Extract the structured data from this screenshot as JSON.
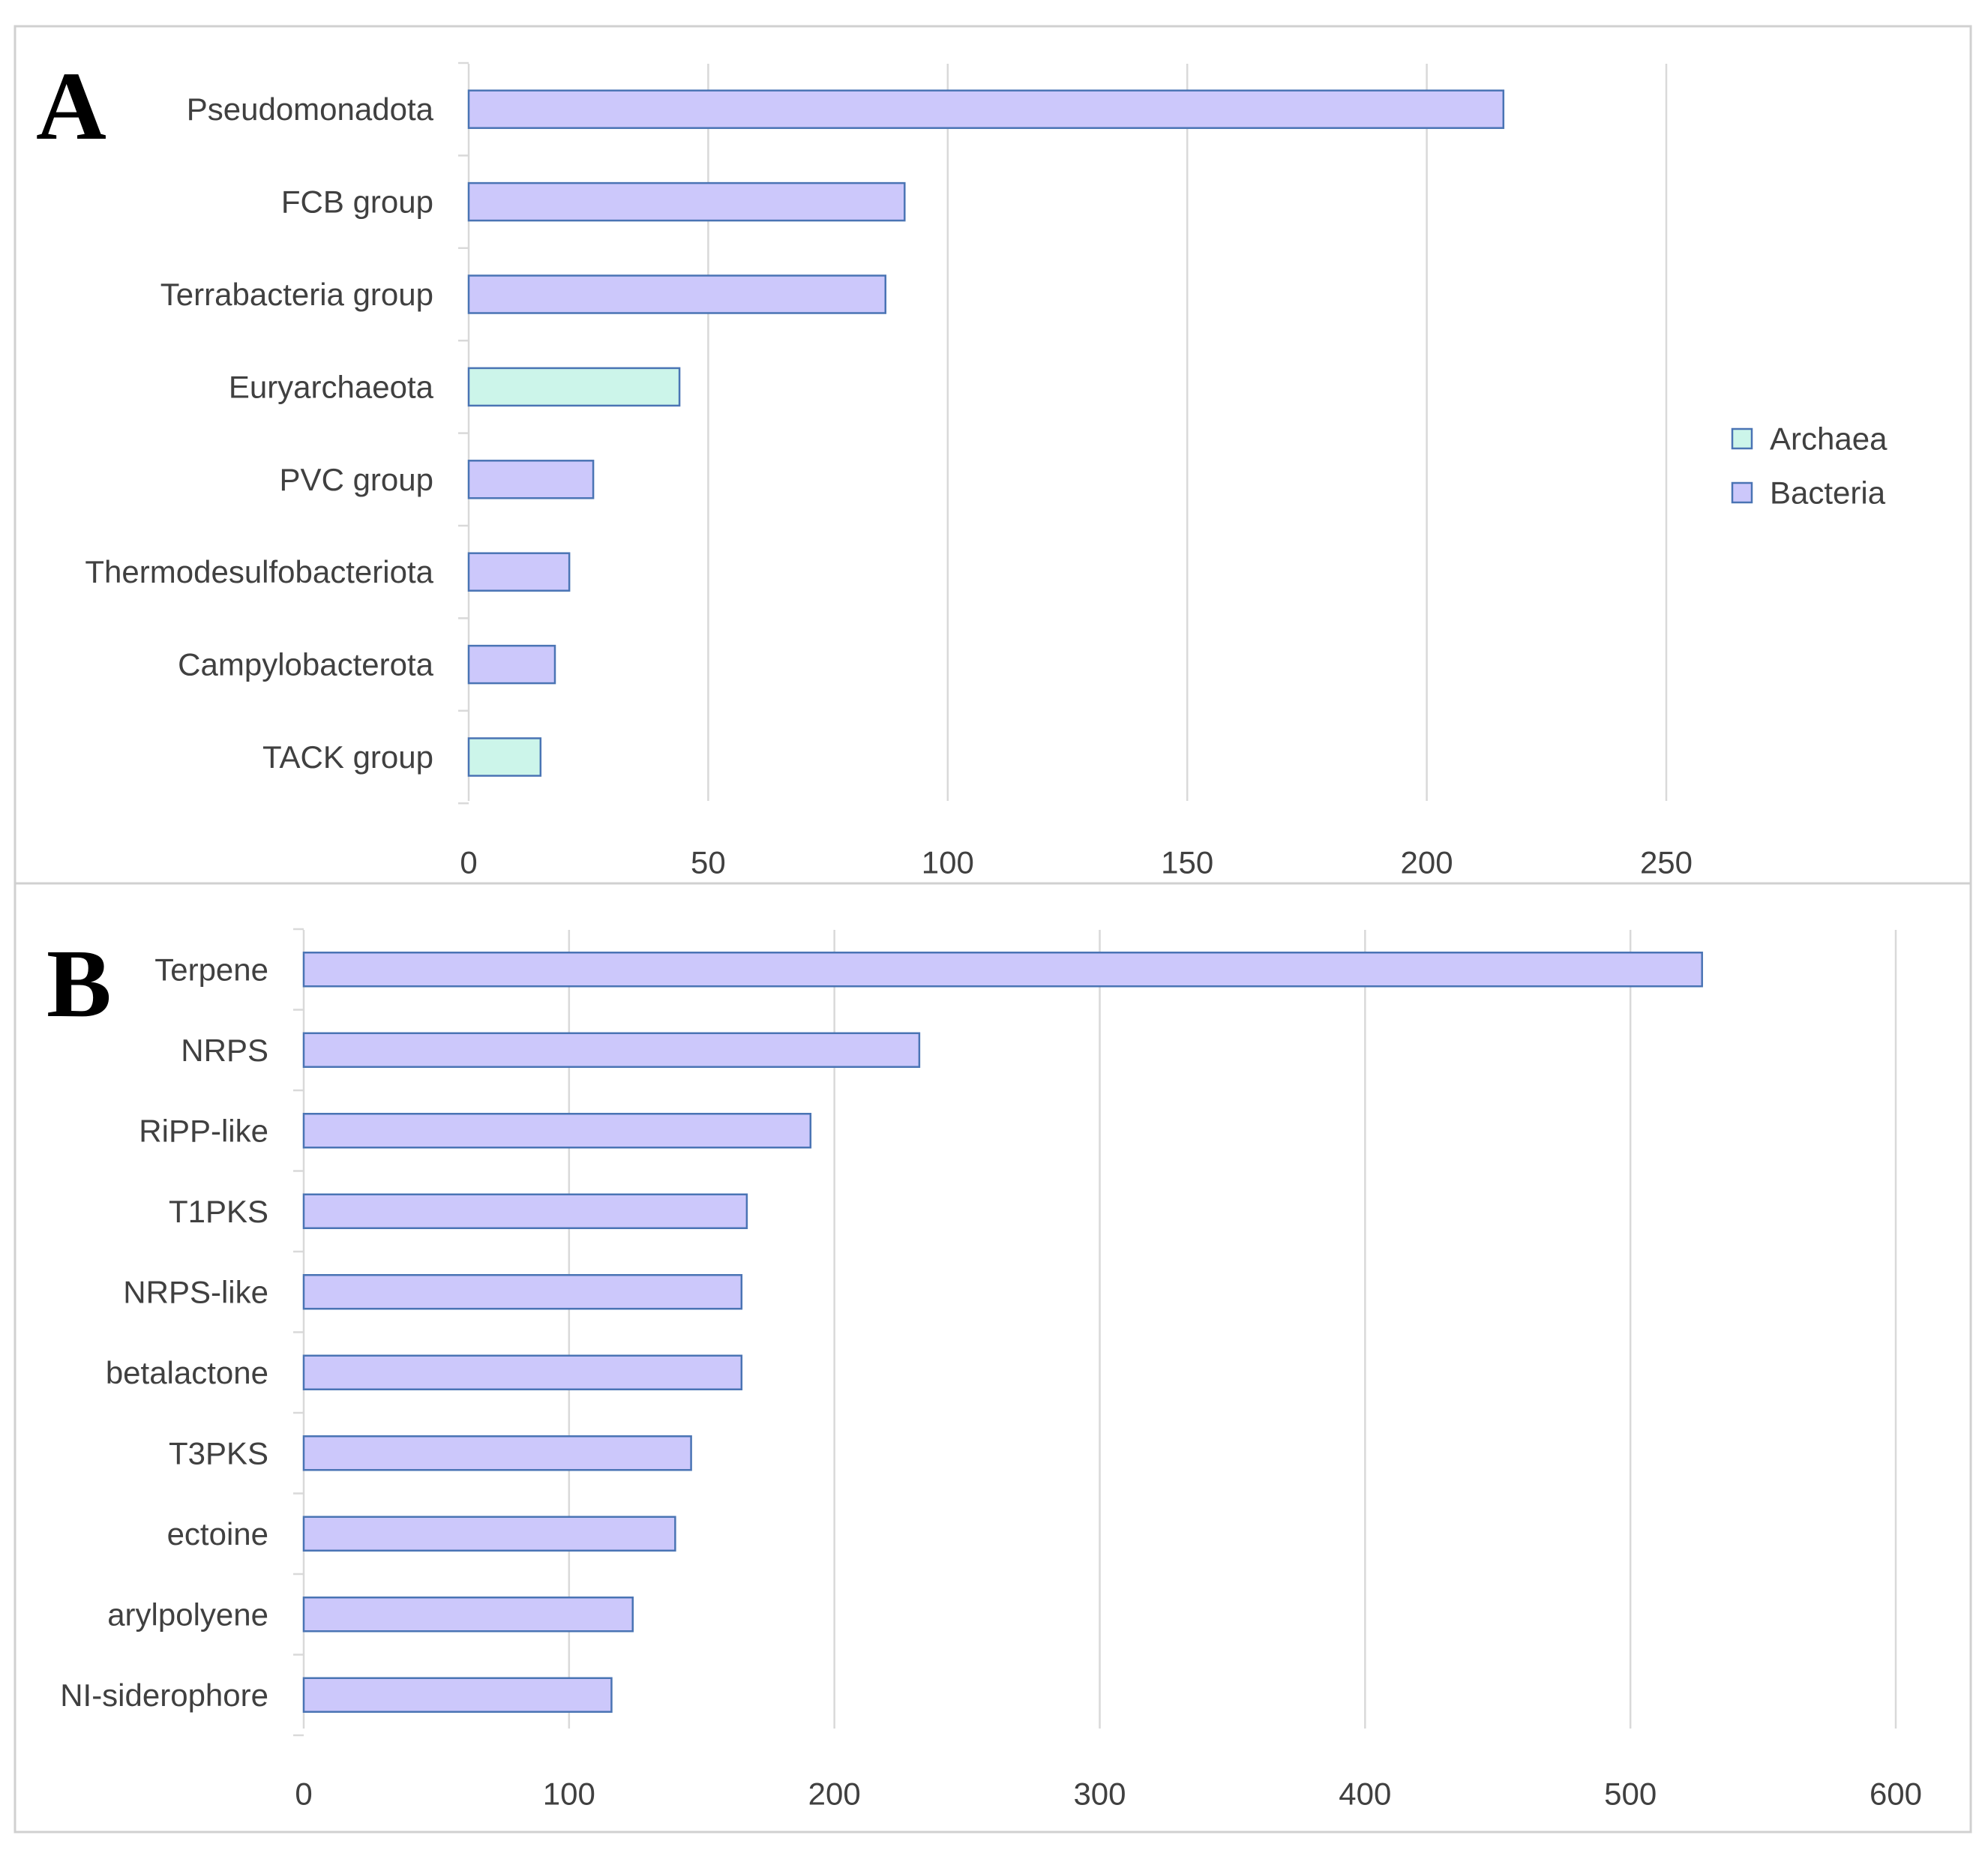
{
  "colors": {
    "archaea_fill": "#ccf5ea",
    "bacteria_fill": "#ccc8fb",
    "bar_stroke": "#4a74b4",
    "grid": "#d9d9d9",
    "panel_border": "#d0d0d0",
    "text": "#404040"
  },
  "chart_data": [
    {
      "panel_label": "A",
      "type": "bar",
      "orientation": "horizontal",
      "categories": [
        "Pseudomonadota",
        "FCB group",
        "Terrabacteria group",
        "Euryarchaeota",
        "PVC group",
        "Thermodesulfobacteriota",
        "Campylobacterota",
        "TACK group"
      ],
      "values": [
        216,
        91,
        87,
        44,
        26,
        21,
        18,
        15
      ],
      "groups": [
        "Bacteria",
        "Bacteria",
        "Bacteria",
        "Archaea",
        "Bacteria",
        "Bacteria",
        "Bacteria",
        "Archaea"
      ],
      "xlim": [
        0,
        250
      ],
      "xticks": [
        0,
        50,
        100,
        150,
        200,
        250
      ],
      "grid": true,
      "legend": {
        "position": "right",
        "entries": [
          {
            "label": "Archaea",
            "group": "Archaea"
          },
          {
            "label": "Bacteria",
            "group": "Bacteria"
          }
        ]
      }
    },
    {
      "panel_label": "B",
      "type": "bar",
      "orientation": "horizontal",
      "categories": [
        "Terpene",
        "NRPS",
        "RiPP-like",
        "T1PKS",
        "NRPS-like",
        "betalactone",
        "T3PKS",
        "ectoine",
        "arylpolyene",
        "NI-siderophore"
      ],
      "values": [
        527,
        232,
        191,
        167,
        165,
        165,
        146,
        140,
        124,
        116
      ],
      "groups": [
        "Bacteria",
        "Bacteria",
        "Bacteria",
        "Bacteria",
        "Bacteria",
        "Bacteria",
        "Bacteria",
        "Bacteria",
        "Bacteria",
        "Bacteria"
      ],
      "xlim": [
        0,
        600
      ],
      "xticks": [
        0,
        100,
        200,
        300,
        400,
        500,
        600
      ],
      "grid": true
    }
  ]
}
